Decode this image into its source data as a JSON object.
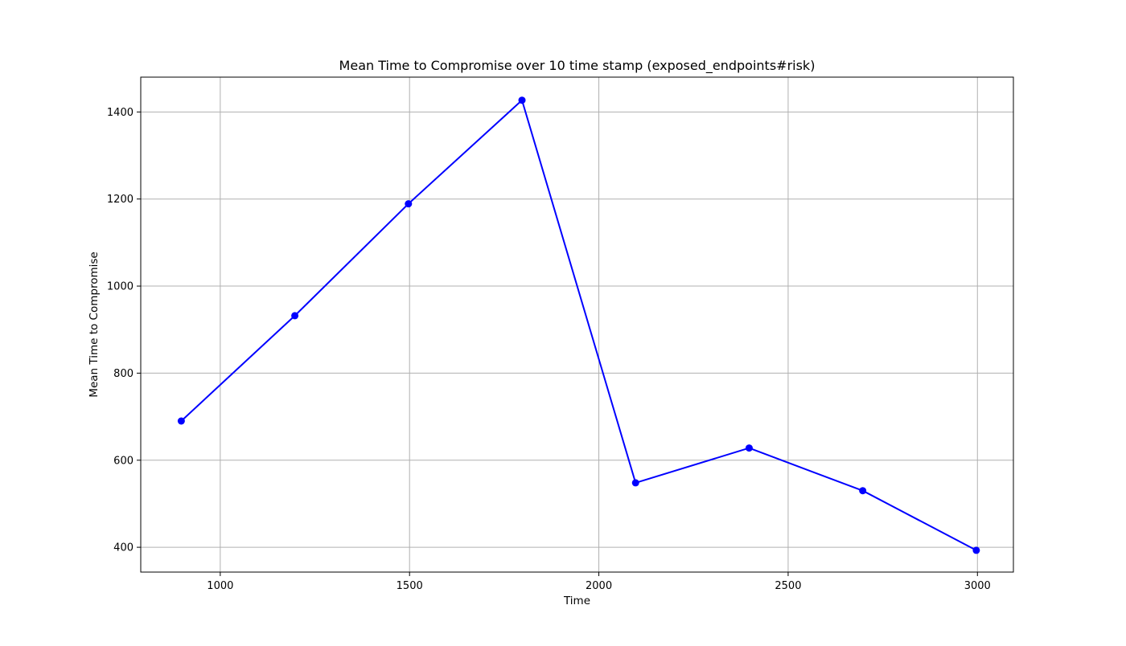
{
  "chart_data": {
    "type": "line",
    "title": "Mean Time to Compromise over 10 time stamp (exposed_endpoints#risk)",
    "xlabel": "Time",
    "ylabel": "Mean Time to Compromise",
    "xlim": [
      790,
      3095
    ],
    "ylim": [
      343,
      1480
    ],
    "xticks": [
      1000,
      1500,
      2000,
      2500,
      3000
    ],
    "yticks": [
      400,
      600,
      800,
      1000,
      1200,
      1400
    ],
    "grid": true,
    "series": [
      {
        "color": "#0000ff",
        "marker": "circle",
        "x": [
          897,
          1197,
          1497,
          1797,
          2097,
          2397,
          2697,
          2997
        ],
        "y": [
          690,
          932,
          1189,
          1427,
          548,
          628,
          530,
          393
        ]
      }
    ]
  }
}
